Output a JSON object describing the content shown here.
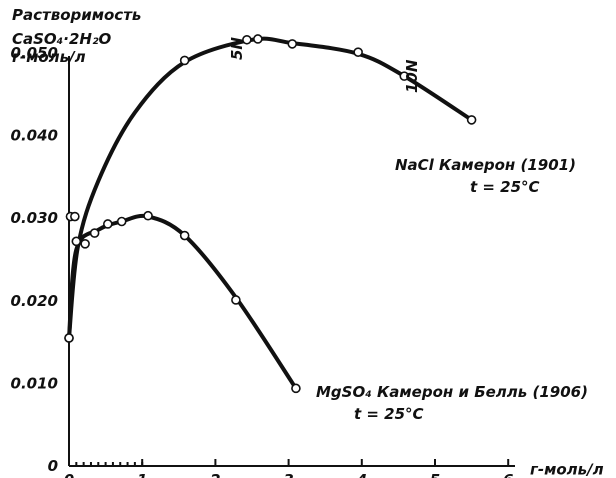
{
  "chart_data": {
    "type": "line",
    "title_lines": [
      "Растворимость",
      "CaSO₄·2H₂O",
      "г-моль/л"
    ],
    "xlabel": "г-моль/л",
    "xlim": [
      0,
      6
    ],
    "ylim": [
      0,
      0.05
    ],
    "x_ticks": [
      0,
      1,
      2,
      3,
      4,
      5,
      6
    ],
    "x_tick_labels": [
      "0",
      "1",
      "2",
      "3",
      "4",
      "5",
      "6"
    ],
    "y_ticks": [
      0,
      0.01,
      0.02,
      0.03,
      0.04,
      0.05
    ],
    "y_tick_labels": [
      "0",
      "0.010",
      "0.020",
      "0.030",
      "0.040",
      "0.050"
    ],
    "grid": false,
    "series": [
      {
        "id": "nacl",
        "label_lines": [
          "NaCl  Камерон (1901)",
          "t = 25°C"
        ],
        "markers": "open-circle",
        "points": [
          {
            "x": 0.0,
            "y": 0.0155
          },
          {
            "x": 0.02,
            "y": 0.0302
          },
          {
            "x": 1.58,
            "y": 0.0491
          },
          {
            "x": 2.43,
            "y": 0.0516
          },
          {
            "x": 2.58,
            "y": 0.0517
          },
          {
            "x": 3.05,
            "y": 0.0511
          },
          {
            "x": 3.95,
            "y": 0.0501
          },
          {
            "x": 4.58,
            "y": 0.0472
          },
          {
            "x": 5.5,
            "y": 0.0419
          }
        ]
      },
      {
        "id": "mgso4",
        "label_lines": [
          "MgSO₄  Камерон и Белль (1906)",
          "t = 25°C"
        ],
        "markers": "open-circle",
        "points": [
          {
            "x": 0.0,
            "y": 0.0155
          },
          {
            "x": 0.08,
            "y": 0.0302
          },
          {
            "x": 0.1,
            "y": 0.0272
          },
          {
            "x": 0.22,
            "y": 0.0269
          },
          {
            "x": 0.35,
            "y": 0.0282
          },
          {
            "x": 0.53,
            "y": 0.0293
          },
          {
            "x": 0.72,
            "y": 0.0296
          },
          {
            "x": 1.08,
            "y": 0.0303
          },
          {
            "x": 1.58,
            "y": 0.0279
          },
          {
            "x": 2.28,
            "y": 0.0201
          },
          {
            "x": 3.1,
            "y": 0.0094
          }
        ]
      }
    ],
    "annotations": [
      {
        "text": "5N",
        "x": 2.5,
        "y": 0.05,
        "rotation": "vertical"
      },
      {
        "text": "10N",
        "x": 4.6,
        "y": 0.048,
        "rotation": "vertical"
      }
    ]
  }
}
